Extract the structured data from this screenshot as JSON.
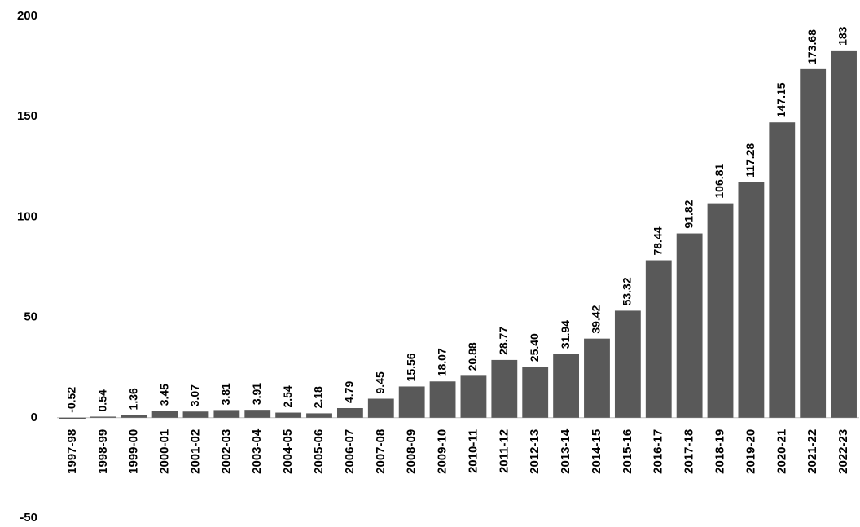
{
  "chart_data": {
    "type": "bar",
    "categories": [
      "1997-98",
      "1998-99",
      "1999-00",
      "2000-01",
      "2001-02",
      "2002-03",
      "2003-04",
      "2004-05",
      "2005-06",
      "2006-07",
      "2007-08",
      "2008-09",
      "2009-10",
      "2010-11",
      "2011-12",
      "2012-13",
      "2013-14",
      "2014-15",
      "2015-16",
      "2016-17",
      "2017-18",
      "2018-19",
      "2019-20",
      "2020-21",
      "2021-22",
      "2022-23"
    ],
    "values": [
      -0.52,
      0.54,
      1.36,
      3.45,
      3.07,
      3.81,
      3.91,
      2.54,
      2.18,
      4.79,
      9.45,
      15.56,
      18.07,
      20.88,
      28.77,
      25.4,
      31.94,
      39.42,
      53.32,
      78.44,
      91.82,
      106.81,
      117.28,
      147.15,
      173.68,
      183
    ],
    "value_labels": [
      "-0.52",
      "0.54",
      "1.36",
      "3.45",
      "3.07",
      "3.81",
      "3.91",
      "2.54",
      "2.18",
      "4.79",
      "9.45",
      "15.56",
      "18.07",
      "20.88",
      "28.77",
      "25.40",
      "31.94",
      "39.42",
      "53.32",
      "78.44",
      "91.82",
      "106.81",
      "117.28",
      "147.15",
      "173.68",
      "183"
    ],
    "color": "#595959",
    "ylim": [
      -50,
      200
    ],
    "yticks": [
      -50,
      0,
      50,
      100,
      150,
      200
    ],
    "grid": false
  }
}
